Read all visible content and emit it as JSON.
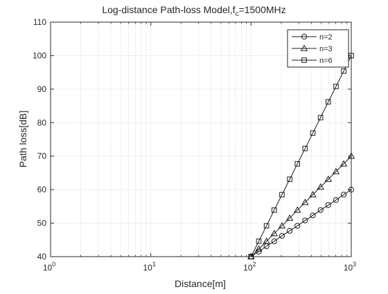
{
  "chart_data": {
    "type": "line",
    "title": "Log-distance Path-loss Model,f",
    "title_subscript": "c",
    "title_suffix": "=1500MHz",
    "xlabel": "Distance[m]",
    "ylabel": "Path loss[dB]",
    "x_scale": "log",
    "xlim": [
      1,
      1000
    ],
    "ylim": [
      40,
      110
    ],
    "x_ticks": [
      1,
      10,
      100,
      1000
    ],
    "x_tick_labels": [
      {
        "base": "10",
        "exp": "0"
      },
      {
        "base": "10",
        "exp": "1"
      },
      {
        "base": "10",
        "exp": "2"
      },
      {
        "base": "10",
        "exp": "3"
      }
    ],
    "y_ticks": [
      40,
      50,
      60,
      70,
      80,
      90,
      100,
      110
    ],
    "y_tick_labels": [
      "40",
      "50",
      "60",
      "70",
      "80",
      "90",
      "100",
      "110"
    ],
    "grid": true,
    "legend_position": "top-right",
    "x": [
      100,
      119.4,
      142.6,
      170.3,
      203.4,
      242.8,
      290,
      346.2,
      413.5,
      493.6,
      589.4,
      703.8,
      840.4,
      1000
    ],
    "series": [
      {
        "name": "n=2",
        "marker": "circle",
        "values": [
          40,
          41.5,
          43.1,
          44.6,
          46.2,
          47.7,
          49.2,
          50.8,
          52.3,
          53.9,
          55.4,
          56.9,
          58.5,
          60
        ]
      },
      {
        "name": "n=3",
        "marker": "triangle",
        "values": [
          40,
          42.3,
          44.6,
          46.9,
          49.2,
          51.5,
          53.9,
          56.2,
          58.5,
          60.8,
          63.1,
          65.4,
          67.7,
          70
        ]
      },
      {
        "name": "n=6",
        "marker": "square",
        "values": [
          40,
          44.6,
          49.2,
          53.9,
          58.5,
          63.1,
          67.7,
          72.3,
          76.9,
          81.5,
          86.2,
          90.8,
          95.4,
          100
        ]
      }
    ]
  }
}
